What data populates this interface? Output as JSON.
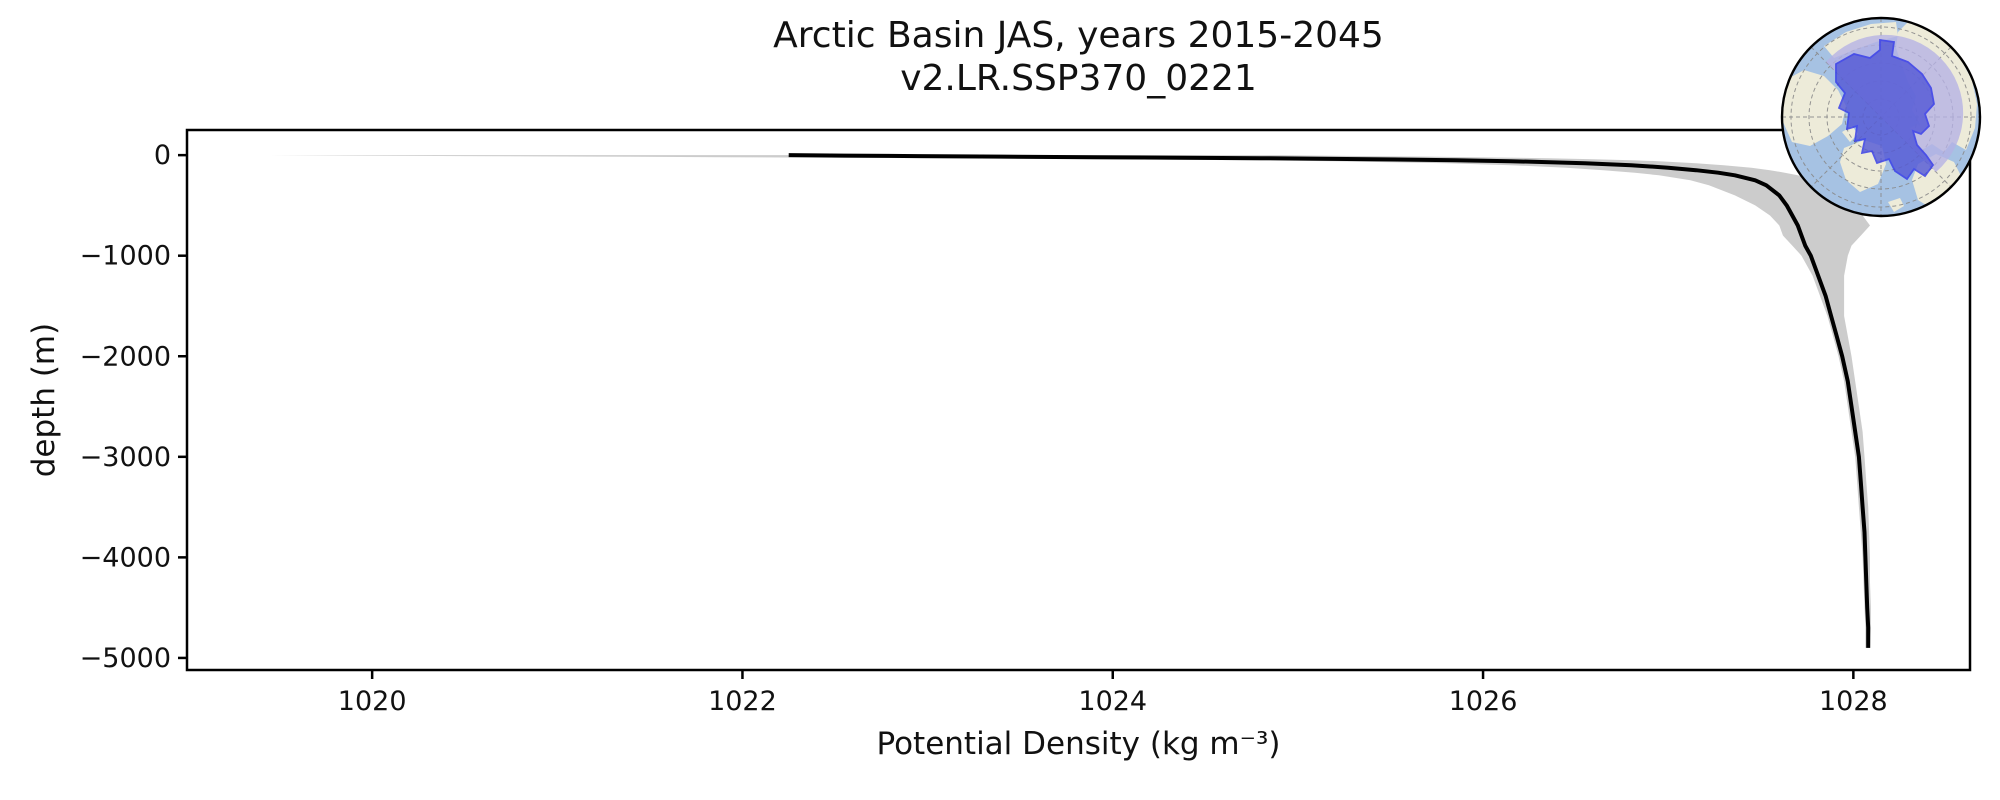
{
  "figure": {
    "title_line1": "Arctic Basin JAS, years 2015-2045",
    "title_line2": "v2.LR.SSP370_0221",
    "xlabel": "Potential Density (kg m⁻³)",
    "ylabel": "depth (m)"
  },
  "chart_data": {
    "type": "line",
    "title": "Arctic Basin JAS, years 2015-2045\nv2.LR.SSP370_0221",
    "xlabel": "Potential Density (kg m⁻³)",
    "ylabel": "depth (m)",
    "xlim": [
      1019.0,
      1028.63
    ],
    "ylim": [
      -5120,
      250
    ],
    "x_ticks": [
      1020,
      1022,
      1024,
      1026,
      1028
    ],
    "x_tick_labels": [
      "1020",
      "1022",
      "1024",
      "1026",
      "1028"
    ],
    "y_ticks": [
      0,
      -1000,
      -2000,
      -3000,
      -4000,
      -5000
    ],
    "y_tick_labels": [
      "0",
      "−1000",
      "−2000",
      "−3000",
      "−4000",
      "−5000"
    ],
    "grid": false,
    "legend": "none",
    "depth": [
      0,
      -5,
      -10,
      -15,
      -20,
      -30,
      -40,
      -50,
      -60,
      -80,
      -100,
      -125,
      -150,
      -175,
      -200,
      -250,
      -300,
      -400,
      -500,
      -600,
      -700,
      -800,
      -900,
      -1000,
      -1200,
      -1400,
      -1600,
      -1800,
      -2000,
      -2250,
      -2500,
      -2750,
      -3000,
      -3250,
      -3500,
      -3750,
      -4000,
      -4250,
      -4500,
      -4700,
      -4900
    ],
    "series": [
      {
        "name": "std-band",
        "kind": "band",
        "color": "#b9b9b9",
        "opacity": 0.72,
        "lower": [
          1019.45,
          1019.9,
          1020.5,
          1021.2,
          1021.9,
          1023.1,
          1024.0,
          1024.7,
          1025.2,
          1025.8,
          1026.15,
          1026.45,
          1026.65,
          1026.82,
          1026.95,
          1027.12,
          1027.22,
          1027.36,
          1027.47,
          1027.55,
          1027.6,
          1027.62,
          1027.67,
          1027.72,
          1027.78,
          1027.82,
          1027.86,
          1027.89,
          1027.92,
          1027.95,
          1027.97,
          1027.99,
          1028.01,
          1028.02,
          1028.03,
          1028.04,
          1028.05,
          1028.055,
          1028.06,
          1028.065,
          1028.065
        ],
        "upper": [
          1024.9,
          1025.1,
          1025.4,
          1025.7,
          1025.95,
          1026.35,
          1026.6,
          1026.8,
          1026.95,
          1027.15,
          1027.3,
          1027.45,
          1027.55,
          1027.63,
          1027.7,
          1027.78,
          1027.84,
          1027.93,
          1027.99,
          1028.05,
          1028.09,
          1028.04,
          1027.99,
          1027.97,
          1027.95,
          1027.95,
          1027.95,
          1027.97,
          1027.99,
          1028.01,
          1028.03,
          1028.05,
          1028.06,
          1028.07,
          1028.08,
          1028.085,
          1028.09,
          1028.09,
          1028.095,
          1028.095,
          1028.09
        ]
      },
      {
        "name": "mean-profile",
        "kind": "line",
        "color": "#000000",
        "width": 4,
        "values": [
          1022.25,
          1022.55,
          1022.95,
          1023.4,
          1023.9,
          1024.8,
          1025.4,
          1025.85,
          1026.15,
          1026.55,
          1026.8,
          1027.0,
          1027.15,
          1027.27,
          1027.36,
          1027.47,
          1027.53,
          1027.6,
          1027.64,
          1027.67,
          1027.7,
          1027.72,
          1027.74,
          1027.77,
          1027.81,
          1027.85,
          1027.88,
          1027.91,
          1027.94,
          1027.97,
          1027.99,
          1028.01,
          1028.03,
          1028.04,
          1028.05,
          1028.06,
          1028.065,
          1028.07,
          1028.075,
          1028.08,
          1028.08
        ]
      }
    ],
    "axes_color": "#000000",
    "inset": {
      "name": "arctic-basin-map",
      "description": "North-polar orthographic globe inset with Arctic Basin region highlighted",
      "ocean_color": "#a6c2e3",
      "land_color": "#edebd9",
      "region_fill": "#555ad6",
      "region_edge": "#3239e8",
      "sector_fill": "#b5b1e4",
      "graticule_color": "#8a8a8a",
      "outline_color": "#000000"
    }
  }
}
